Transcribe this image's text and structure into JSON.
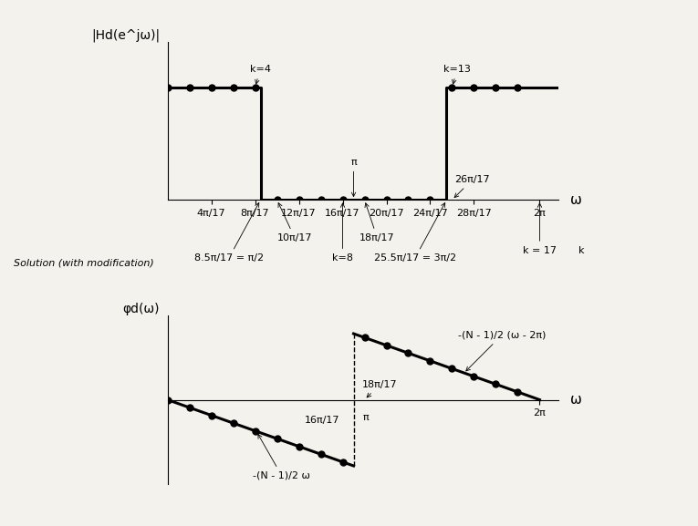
{
  "chart_data": [
    {
      "type": "line",
      "ylabel": "|Hd(e^jω)|",
      "xlabel": "ω",
      "xlim": [
        0,
        6.6
      ],
      "ylim": [
        0,
        1.4
      ],
      "xticks": [
        {
          "value": 0.7392,
          "label": "4π/17"
        },
        {
          "value": 1.4784,
          "label": "8π/17"
        },
        {
          "value": 2.2176,
          "label": "12π/17"
        },
        {
          "value": 2.9568,
          "label": "16π/17"
        },
        {
          "value": 3.696,
          "label": "20π/17"
        },
        {
          "value": 4.4352,
          "label": "24π/17"
        },
        {
          "value": 5.1744,
          "label": "28π/17"
        },
        {
          "value": 6.2832,
          "label": "2π"
        }
      ],
      "yticks": [],
      "tick_labels": "x",
      "grid": false,
      "series": [
        {
          "type": "line",
          "color": "#000000",
          "line_style": "solid",
          "x": [
            0,
            1.5708,
            1.5708,
            4.7124,
            4.7124,
            6.6
          ],
          "values": [
            1,
            1,
            0,
            0,
            1,
            1
          ]
        },
        {
          "type": "scatter",
          "color": "#000000",
          "marker": "o",
          "x": [
            0,
            0.3696,
            0.7392,
            1.1088,
            1.4784,
            1.848,
            2.2176,
            2.5872,
            2.9568,
            3.3264,
            3.696,
            4.0656,
            4.4352,
            4.8048,
            5.1744,
            5.544,
            5.9136
          ],
          "values": [
            1,
            1,
            1,
            1,
            1,
            0,
            0,
            0,
            0,
            0,
            0,
            0,
            0,
            1,
            1,
            1,
            1
          ]
        }
      ],
      "annotations": [
        {
          "text": "k=4",
          "x": 1.4784,
          "y": 1
        },
        {
          "text": "k=13",
          "x": 4.8048,
          "y": 1
        },
        {
          "text": "π",
          "x": 3.1416,
          "y": 0
        },
        {
          "text": "8.5π/17 = π/2",
          "x": 1.5708,
          "y": 0
        },
        {
          "text": "10π/17",
          "x": 1.848,
          "y": 0
        },
        {
          "text": "k=8",
          "x": 2.9568,
          "y": 0
        },
        {
          "text": "18π/17",
          "x": 3.3264,
          "y": 0
        },
        {
          "text": "25.5π/17 = 3π/2",
          "x": 4.7124,
          "y": 0
        },
        {
          "text": "26π/17",
          "x": 4.8048,
          "y": 0
        },
        {
          "text": "k = 17",
          "x": 6.2832,
          "y": 0
        },
        {
          "text": "k",
          "x": 6.6,
          "y": 0
        }
      ]
    },
    {
      "type": "line",
      "subtitle": "Solution (with modification)",
      "ylabel": "φd(ω)",
      "xlabel": "ω",
      "xlim": [
        0,
        6.6
      ],
      "ylim": [
        -32,
        32
      ],
      "xticks": [
        {
          "value": 6.2832,
          "label": "2π"
        }
      ],
      "yticks": [],
      "tick_labels": "x",
      "grid": false,
      "series": [
        {
          "type": "line",
          "color": "#000000",
          "line_style": "solid",
          "x": [
            0,
            3.1416
          ],
          "values": [
            0,
            -25.1327
          ]
        },
        {
          "type": "line",
          "color": "#000000",
          "line_style": "solid",
          "x": [
            3.1416,
            6.2832
          ],
          "values": [
            25.1327,
            0
          ]
        },
        {
          "type": "line",
          "color": "#000000",
          "line_style": "dashed",
          "x": [
            3.1416,
            3.1416
          ],
          "values": [
            -25.1327,
            25.1327
          ]
        },
        {
          "type": "scatter",
          "color": "#000000",
          "marker": "o",
          "x": [
            0,
            0.3696,
            0.7392,
            1.1088,
            1.4784,
            1.848,
            2.2176,
            2.5872,
            2.9568,
            3.3264,
            3.696,
            4.0656,
            4.4352,
            4.8048,
            5.1744,
            5.544,
            5.9136
          ],
          "values": [
            0,
            -2.9568,
            -5.9136,
            -8.8704,
            -11.8272,
            -14.784,
            -17.7408,
            -20.6976,
            -23.6544,
            23.6544,
            20.6976,
            17.7408,
            14.784,
            11.8272,
            8.8704,
            5.9136,
            2.9568
          ]
        }
      ],
      "annotations": [
        {
          "text": "16π/17",
          "x": 2.9568,
          "y": 0
        },
        {
          "text": "π",
          "x": 3.1416,
          "y": 0
        },
        {
          "text": "18π/17",
          "x": 3.3264,
          "y": 0
        },
        {
          "text": "-(N - 1)/2 ω",
          "x": 1.5,
          "y": -12
        },
        {
          "text": "-(N - 1)/2 (ω - 2π)",
          "x": 5.0,
          "y": 10.05
        }
      ]
    }
  ]
}
